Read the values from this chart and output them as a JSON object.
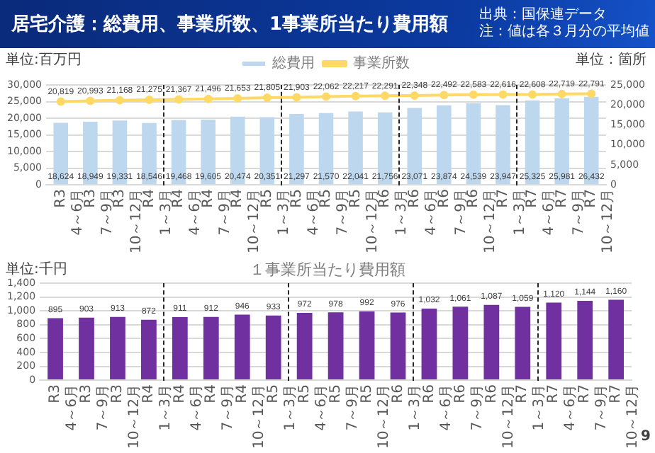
{
  "chart_data": [
    {
      "type": "bar",
      "title": "居宅介護：総費用、事業所数、1事業所当たり費用額",
      "annotations": [
        "出典：国保連データ",
        "注：値は各３月分の平均値"
      ],
      "ylabel": "単位:百万円",
      "y2label": "単位：箇所",
      "categories": [
        "R3\n4～6月",
        "R3\n7～9月",
        "R3\n10～12月",
        "R4\n1～3月",
        "R4\n4～6月",
        "R4\n7～9月",
        "R4\n10～12月",
        "R5\n1～3月",
        "R5\n4～6月",
        "R5\n7～9月",
        "R5\n10～12月",
        "R6\n1～3月",
        "R6\n4～6月",
        "R6\n7～9月",
        "R6\n10～12月",
        "R7\n1～3月",
        "R7\n4～6月",
        "R7\n7～9月",
        "R7\n10～12月"
      ],
      "series": [
        {
          "name": "総費用",
          "type": "bar",
          "color": "#bdd7ee",
          "values": [
            18624,
            18949,
            19331,
            18546,
            19468,
            19605,
            20474,
            20351,
            21297,
            21570,
            22041,
            21756,
            23071,
            23874,
            24539,
            23947,
            25325,
            25981,
            26432
          ],
          "value_labels": [
            "18,624",
            "18,949",
            "19,331",
            "18,546",
            "19,468",
            "19,605",
            "20,474",
            "20,351",
            "21,297",
            "21,570",
            "22,041",
            "21,756",
            "23,071",
            "23,874",
            "24,539",
            "23,947",
            "25,325",
            "25,981",
            "26,432"
          ]
        },
        {
          "name": "事業所数",
          "type": "line",
          "axis": "y2",
          "marker": "circle",
          "color": "#ffd966",
          "values": [
            20819,
            20993,
            21168,
            21275,
            21367,
            21496,
            21653,
            21805,
            21903,
            22062,
            22217,
            22291,
            22348,
            22492,
            22583,
            22616,
            22608,
            22719,
            22791
          ],
          "value_labels": [
            "20,819",
            "20,993",
            "21,168",
            "21,275",
            "21,367",
            "21,496",
            "21,653",
            "21,805",
            "21,903",
            "22,062",
            "22,217",
            "22,291",
            "22,348",
            "22,492",
            "22,583",
            "22,616",
            "22,608",
            "22,719",
            "22,791"
          ]
        }
      ],
      "ylim": [
        0,
        30000
      ],
      "yticks": [
        0,
        {
          "value": 5000,
          "label": "5,000"
        },
        {
          "value": 10000,
          "label": "10,000"
        },
        {
          "value": 15000,
          "label": "15,000"
        },
        {
          "value": 20000,
          "label": "20,000"
        },
        {
          "value": 25000,
          "label": "25,000"
        },
        {
          "value": 30000,
          "label": "30,000"
        }
      ],
      "y2lim": [
        0,
        25000
      ],
      "y2ticks": [
        0,
        {
          "value": 5000,
          "label": "5,000"
        },
        {
          "value": 10000,
          "label": "10,000"
        },
        {
          "value": 15000,
          "label": "15,000"
        },
        {
          "value": 20000,
          "label": "20,000"
        },
        {
          "value": 25000,
          "label": "25,000"
        }
      ],
      "grid": "y",
      "legend": "top"
    },
    {
      "type": "bar",
      "title": "１事業所当たり費用額",
      "ylabel": "単位:千円",
      "annotations": [
        "9"
      ],
      "categories": [
        "R3\n4～6月",
        "R3\n7～9月",
        "R3\n10～12月",
        "R4\n1～3月",
        "R4\n4～6月",
        "R4\n7～9月",
        "R4\n10～12月",
        "R5\n1～3月",
        "R5\n4～6月",
        "R5\n7～9月",
        "R5\n10～12月",
        "R6\n1～3月",
        "R6\n4～6月",
        "R6\n7～9月",
        "R6\n10～12月",
        "R7\n1～3月",
        "R7\n4～6月",
        "R7\n7～9月",
        "R7\n10～12月"
      ],
      "values": [
        895,
        903,
        913,
        872,
        911,
        912,
        946,
        933,
        972,
        978,
        992,
        976,
        1032,
        1061,
        1087,
        1059,
        1120,
        1144,
        1160
      ],
      "value_labels": [
        "895",
        "903",
        "913",
        "872",
        "911",
        "912",
        "946",
        "933",
        "972",
        "978",
        "992",
        "976",
        "1,032",
        "1,061",
        "1,087",
        "1,059",
        "1,120",
        "1,144",
        "1,160"
      ],
      "color": "#7030a0",
      "ylim": [
        0,
        1400
      ],
      "yticks": [
        0,
        200,
        400,
        600,
        800,
        {
          "value": 1000,
          "label": "1,000"
        },
        {
          "value": 1200,
          "label": "1,200"
        },
        {
          "value": 1400,
          "label": "1,400"
        }
      ],
      "grid": "y"
    }
  ]
}
